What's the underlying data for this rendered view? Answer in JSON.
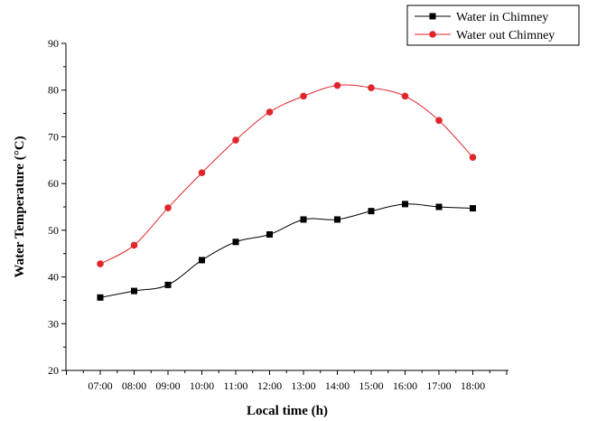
{
  "chart_data": {
    "type": "line",
    "title": "",
    "xlabel": "Local time (h)",
    "ylabel": "Water Temperature (°C)",
    "ylim": [
      20,
      90
    ],
    "yticks": [
      20,
      30,
      40,
      50,
      60,
      70,
      80,
      90
    ],
    "categories": [
      "07:00",
      "08:00",
      "09:00",
      "10:00",
      "11:00",
      "12:00",
      "13:00",
      "14:00",
      "15:00",
      "16:00",
      "17:00",
      "18:00"
    ],
    "grid": false,
    "legend_position": "top-right",
    "series": [
      {
        "name": "Water in Chimney",
        "color": "#000000",
        "marker": "square",
        "values": [
          35.6,
          37.0,
          38.3,
          43.6,
          47.5,
          49.1,
          52.3,
          52.3,
          54.1,
          55.6,
          55.0,
          54.7
        ]
      },
      {
        "name": "Water out Chimney",
        "color": "#e0262a",
        "marker": "circle",
        "values": [
          42.8,
          46.8,
          54.8,
          62.3,
          69.3,
          75.3,
          78.7,
          81.0,
          80.5,
          78.7,
          73.5,
          65.6
        ]
      }
    ]
  }
}
